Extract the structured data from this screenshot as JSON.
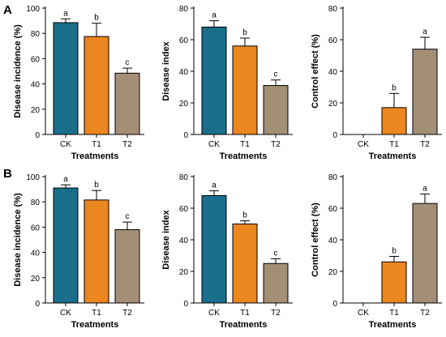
{
  "panel_labels": [
    "A",
    "B"
  ],
  "colors": {
    "CK": "#1a6e8c",
    "T1": "#ec861f",
    "T2": "#a38e76",
    "axis": "#000000"
  },
  "chart_data": [
    {
      "type": "bar",
      "panel": "A",
      "categories": [
        "CK",
        "T1",
        "T2"
      ],
      "values": [
        88.5,
        77.5,
        48.5
      ],
      "errors": [
        3.0,
        10.5,
        4.0
      ],
      "sig_letters": [
        "a",
        "b",
        "c"
      ],
      "yticks": [
        0,
        20,
        40,
        60,
        80,
        100
      ],
      "ylim": [
        0,
        100
      ],
      "xlabel": "Treatments",
      "ylabel": "Disease incidence (%)"
    },
    {
      "type": "bar",
      "panel": "A",
      "categories": [
        "CK",
        "T1",
        "T2"
      ],
      "values": [
        68,
        56,
        31
      ],
      "errors": [
        4.0,
        5.0,
        3.5
      ],
      "sig_letters": [
        "a",
        "b",
        "c"
      ],
      "yticks": [
        0,
        20,
        40,
        60,
        80
      ],
      "ylim": [
        0,
        80
      ],
      "xlabel": "Treatments",
      "ylabel": "Disease index"
    },
    {
      "type": "bar",
      "panel": "A",
      "categories": [
        "CK",
        "T1",
        "T2"
      ],
      "values": [
        0,
        17,
        54
      ],
      "errors": [
        0,
        9.0,
        7.5
      ],
      "sig_letters": [
        "",
        "b",
        "a"
      ],
      "yticks": [
        0,
        20,
        40,
        60,
        80
      ],
      "ylim": [
        0,
        80
      ],
      "xlabel": "Treatments",
      "ylabel": "Control effect (%)"
    },
    {
      "type": "bar",
      "panel": "B",
      "categories": [
        "CK",
        "T1",
        "T2"
      ],
      "values": [
        91,
        81.5,
        58
      ],
      "errors": [
        2.5,
        7.5,
        6.0
      ],
      "sig_letters": [
        "a",
        "b",
        "c"
      ],
      "yticks": [
        0,
        20,
        40,
        60,
        80,
        100
      ],
      "ylim": [
        0,
        100
      ],
      "xlabel": "Treatments",
      "ylabel": "Disease incidence (%)"
    },
    {
      "type": "bar",
      "panel": "B",
      "categories": [
        "CK",
        "T1",
        "T2"
      ],
      "values": [
        68,
        50,
        25
      ],
      "errors": [
        3.0,
        2.0,
        3.0
      ],
      "sig_letters": [
        "a",
        "b",
        "c"
      ],
      "yticks": [
        0,
        20,
        40,
        60,
        80
      ],
      "ylim": [
        0,
        80
      ],
      "xlabel": "Treatments",
      "ylabel": "Disease index"
    },
    {
      "type": "bar",
      "panel": "B",
      "categories": [
        "CK",
        "T1",
        "T2"
      ],
      "values": [
        0,
        26,
        63
      ],
      "errors": [
        0,
        3.5,
        6.0
      ],
      "sig_letters": [
        "",
        "b",
        "a"
      ],
      "yticks": [
        0,
        20,
        40,
        60,
        80
      ],
      "ylim": [
        0,
        80
      ],
      "xlabel": "Treatments",
      "ylabel": "Control effect (%)"
    }
  ]
}
